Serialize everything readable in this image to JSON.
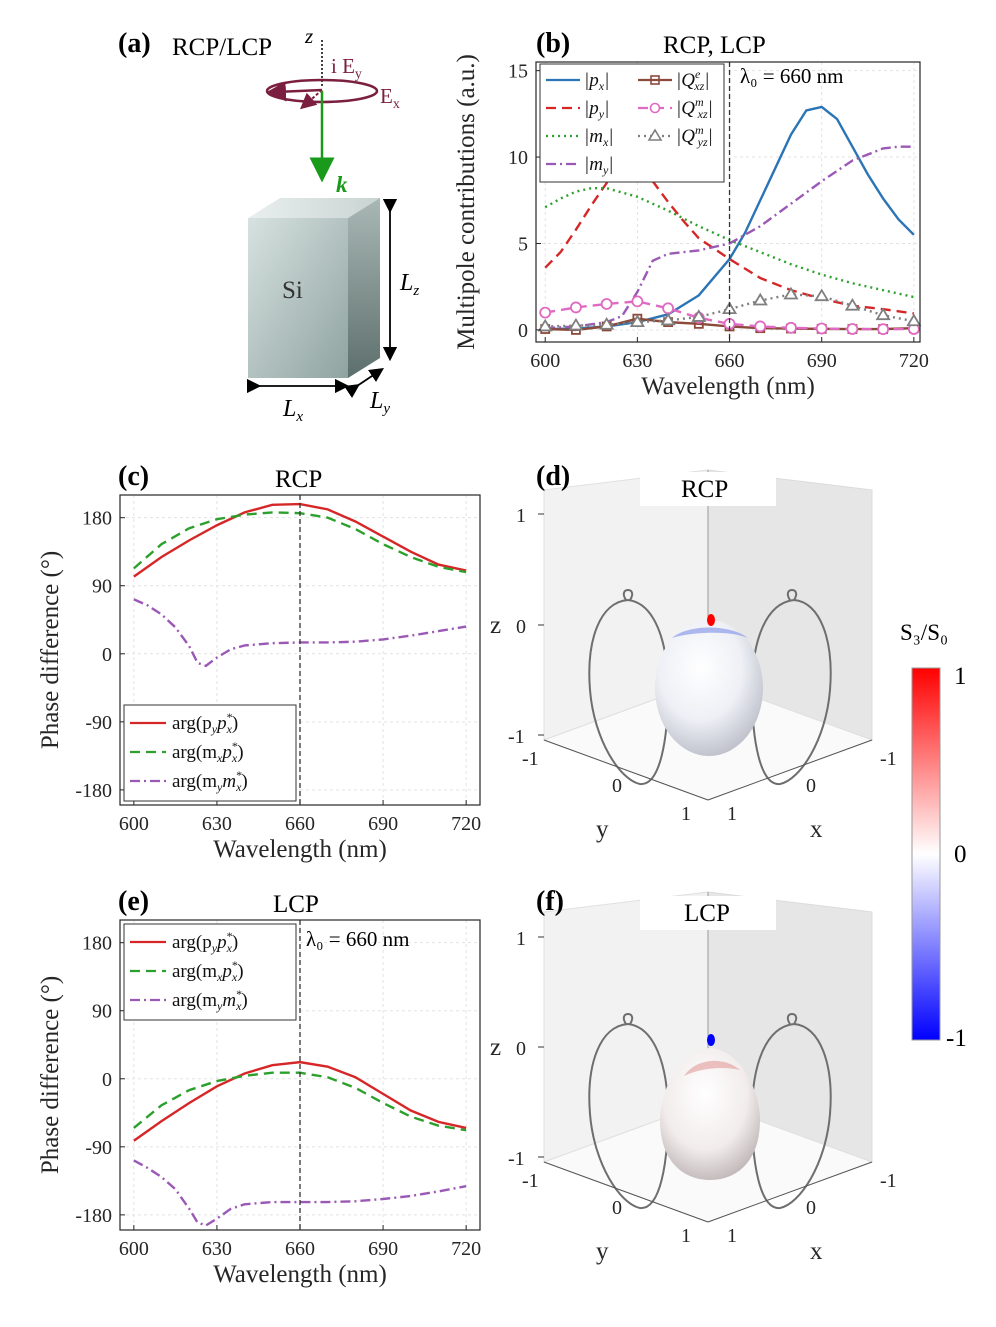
{
  "panels": {
    "a": {
      "label": "(a)",
      "title": "RCP/LCP",
      "axis_z": "z",
      "ey_label": "i E",
      "ey_sub": "y",
      "ex_label": "E",
      "ex_sub": "x",
      "k_label": "k",
      "block_label": "Si",
      "lz": "L",
      "lz_sub": "z",
      "lx": "L",
      "lx_sub": "x",
      "ly": "L",
      "ly_sub": "y"
    },
    "b": {
      "label": "(b)",
      "title": "RCP, LCP",
      "annotation": "λ₀ = 660 nm"
    },
    "c": {
      "label": "(c)",
      "title": "RCP"
    },
    "d": {
      "label": "(d)",
      "title": "RCP"
    },
    "e": {
      "label": "(e)",
      "title": "LCP",
      "annotation": "λ₀ = 660 nm"
    },
    "f": {
      "label": "(f)",
      "title": "LCP"
    }
  },
  "colorbar": {
    "label": "S₃/S₀",
    "ticks": [
      "1",
      "0",
      "-1"
    ],
    "colors": {
      "top": "#ff0000",
      "mid": "#ffffff",
      "bottom": "#0000ff"
    }
  },
  "sphere_axes": {
    "z_label": "z",
    "x_label": "x",
    "y_label": "y",
    "z_ticks": [
      "1",
      "0",
      "-1"
    ],
    "y_ticks": [
      "-1",
      "0",
      "1"
    ],
    "x_ticks": [
      "-1",
      "0",
      "1"
    ]
  },
  "colors": {
    "px": "#2b74b5",
    "py": "#d62728",
    "mx": "#2ca02c",
    "my": "#9b59b6",
    "Qe": "#8b4a3a",
    "Qm": "#e06ac2",
    "Qmyz": "#7f7f7f",
    "arg1": "#d62728",
    "arg2": "#2ca02c",
    "arg3": "#9b59b6",
    "green_k": "#1a9a1a",
    "pol": "#7a1f3f"
  },
  "chart_data": [
    {
      "id": "b",
      "type": "line",
      "title": "RCP, LCP",
      "xlabel": "Wavelength (nm)",
      "ylabel": "Multipole contributions (a.u.)",
      "xlim": [
        597,
        722
      ],
      "ylim": [
        -0.7,
        15.5
      ],
      "xticks": [
        600,
        630,
        660,
        690,
        720
      ],
      "yticks": [
        0,
        5,
        10,
        15
      ],
      "vline": 660,
      "legend": "top-left, two columns",
      "series": [
        {
          "name": "|px|",
          "label": "|p",
          "sub": "x",
          "color": "#2b74b5",
          "dash": "",
          "marker": "",
          "x": [
            600,
            610,
            620,
            630,
            640,
            650,
            660,
            665,
            670,
            675,
            680,
            685,
            690,
            695,
            700,
            705,
            710,
            715,
            720
          ],
          "y": [
            0.05,
            0.08,
            0.2,
            0.45,
            0.9,
            2.0,
            4.1,
            5.6,
            7.5,
            9.4,
            11.3,
            12.7,
            12.9,
            12.2,
            10.6,
            9.0,
            7.6,
            6.4,
            5.5
          ]
        },
        {
          "name": "|py|",
          "label": "|p",
          "sub": "y",
          "color": "#d62728",
          "dash": "10,6",
          "marker": "",
          "x": [
            600,
            605,
            610,
            615,
            620,
            625,
            630,
            635,
            640,
            645,
            650,
            660,
            670,
            680,
            690,
            700,
            710,
            720
          ],
          "y": [
            3.6,
            4.5,
            5.8,
            7.2,
            8.5,
            9.3,
            9.3,
            8.6,
            7.4,
            6.3,
            5.3,
            4.1,
            3.0,
            2.3,
            1.8,
            1.4,
            1.2,
            0.95
          ]
        },
        {
          "name": "|mx|",
          "label": "|m",
          "sub": "x",
          "color": "#2ca02c",
          "dash": "2,4",
          "marker": "",
          "x": [
            600,
            605,
            610,
            615,
            620,
            630,
            640,
            650,
            660,
            670,
            680,
            690,
            700,
            710,
            720
          ],
          "y": [
            7.1,
            7.6,
            8.0,
            8.2,
            8.2,
            7.7,
            6.9,
            6.0,
            5.2,
            4.5,
            3.8,
            3.2,
            2.7,
            2.3,
            1.9
          ]
        },
        {
          "name": "|my|",
          "label": "|m",
          "sub": "y",
          "color": "#9b59b6",
          "dash": "10,4,2,4",
          "marker": "",
          "x": [
            600,
            610,
            620,
            625,
            630,
            635,
            640,
            645,
            650,
            660,
            670,
            680,
            690,
            700,
            710,
            715,
            720
          ],
          "y": [
            0.1,
            0.2,
            0.45,
            0.8,
            2.2,
            4.0,
            4.4,
            4.5,
            4.6,
            5.0,
            6.0,
            7.3,
            8.6,
            9.8,
            10.5,
            10.6,
            10.6
          ]
        },
        {
          "name": "|Qe_xz|",
          "label": "|Q",
          "sub": "xz",
          "sup": "e",
          "color": "#8b4a3a",
          "dash": "",
          "marker": "square",
          "x": [
            600,
            610,
            620,
            630,
            640,
            650,
            660,
            670,
            680,
            690,
            700,
            710,
            720
          ],
          "y": [
            0.05,
            0.0,
            0.2,
            0.65,
            0.45,
            0.35,
            0.2,
            0.1,
            0.08,
            0.06,
            0.05,
            0.05,
            0.1
          ]
        },
        {
          "name": "|Qm_xz|",
          "label": "|Q",
          "sub": "xz",
          "sup": "m",
          "color": "#e06ac2",
          "dash": "10,6",
          "marker": "circle",
          "x": [
            600,
            610,
            620,
            630,
            640,
            650,
            660,
            670,
            680,
            690,
            700,
            710,
            720
          ],
          "y": [
            1.0,
            1.3,
            1.5,
            1.65,
            1.25,
            0.7,
            0.35,
            0.2,
            0.12,
            0.08,
            0.05,
            0.04,
            0.05
          ]
        },
        {
          "name": "|Qm_yz|",
          "label": "|Q",
          "sub": "yz",
          "sup": "m",
          "color": "#7f7f7f",
          "dash": "2,4",
          "marker": "triangle",
          "x": [
            600,
            610,
            620,
            630,
            640,
            650,
            660,
            670,
            680,
            690,
            700,
            710,
            720
          ],
          "y": [
            0.2,
            0.25,
            0.3,
            0.45,
            0.55,
            0.75,
            1.2,
            1.7,
            2.05,
            1.95,
            1.4,
            0.85,
            0.5
          ]
        }
      ]
    },
    {
      "id": "c",
      "type": "line",
      "title": "RCP",
      "xlabel": "Wavelength (nm)",
      "ylabel": "Phase difference (°)",
      "xlim": [
        595,
        725
      ],
      "ylim": [
        -200,
        210
      ],
      "xticks": [
        600,
        630,
        660,
        690,
        720
      ],
      "yticks": [
        180,
        90,
        0,
        -90,
        -180
      ],
      "vline": 660,
      "legend": "bottom-left",
      "series": [
        {
          "name": "arg(py px*)",
          "label": "arg(p",
          "a": "y",
          "b": "p",
          "c": "x",
          "color": "#d62728",
          "dash": "",
          "x": [
            600,
            610,
            620,
            630,
            640,
            650,
            660,
            670,
            680,
            690,
            700,
            710,
            720
          ],
          "y": [
            102,
            128,
            150,
            170,
            187,
            197,
            198,
            191,
            175,
            155,
            135,
            118,
            110
          ]
        },
        {
          "name": "arg(mx px*)",
          "label": "arg(m",
          "a": "x",
          "b": "p",
          "c": "x",
          "color": "#2ca02c",
          "dash": "10,6",
          "x": [
            600,
            610,
            620,
            630,
            640,
            650,
            660,
            670,
            680,
            690,
            700,
            710,
            720
          ],
          "y": [
            113,
            145,
            166,
            178,
            184,
            187,
            186,
            180,
            165,
            145,
            128,
            115,
            108
          ]
        },
        {
          "name": "arg(my mx*)",
          "label": "arg(m",
          "a": "y",
          "b": "m",
          "c": "x",
          "color": "#9b59b6",
          "dash": "10,4,2,4",
          "x": [
            600,
            605,
            610,
            615,
            620,
            623,
            626,
            630,
            635,
            640,
            650,
            660,
            670,
            680,
            690,
            700,
            710,
            720
          ],
          "y": [
            72,
            64,
            52,
            35,
            10,
            -12,
            -16,
            -5,
            6,
            11,
            14,
            15,
            15,
            16,
            19,
            24,
            30,
            36
          ]
        }
      ]
    },
    {
      "id": "e",
      "type": "line",
      "title": "LCP",
      "xlabel": "Wavelength (nm)",
      "ylabel": "Phase difference (°)",
      "xlim": [
        595,
        725
      ],
      "ylim": [
        -200,
        210
      ],
      "xticks": [
        600,
        630,
        660,
        690,
        720
      ],
      "yticks": [
        180,
        90,
        0,
        -90,
        -180
      ],
      "vline": 660,
      "legend": "top-left",
      "series": [
        {
          "name": "arg(py px*)",
          "label": "arg(p",
          "a": "y",
          "b": "p",
          "c": "x",
          "color": "#d62728",
          "dash": "",
          "x": [
            600,
            610,
            620,
            630,
            640,
            650,
            660,
            670,
            680,
            690,
            700,
            710,
            720
          ],
          "y": [
            -82,
            -56,
            -32,
            -10,
            7,
            18,
            22,
            16,
            2,
            -20,
            -42,
            -57,
            -65
          ]
        },
        {
          "name": "arg(mx px*)",
          "label": "arg(m",
          "a": "x",
          "b": "p",
          "c": "x",
          "color": "#2ca02c",
          "dash": "10,6",
          "x": [
            600,
            610,
            620,
            630,
            640,
            650,
            660,
            670,
            680,
            690,
            700,
            710,
            720
          ],
          "y": [
            -65,
            -35,
            -15,
            -3,
            4,
            8,
            8,
            2,
            -12,
            -32,
            -50,
            -62,
            -68
          ]
        },
        {
          "name": "arg(my mx*)",
          "label": "arg(m",
          "a": "y",
          "b": "m",
          "c": "x",
          "color": "#9b59b6",
          "dash": "10,4,2,4",
          "x": [
            600,
            605,
            610,
            615,
            620,
            623,
            626,
            630,
            635,
            640,
            650,
            660,
            670,
            680,
            690,
            700,
            710,
            720
          ],
          "y": [
            -108,
            -118,
            -130,
            -146,
            -172,
            -190,
            -194,
            -185,
            -172,
            -166,
            -163,
            -163,
            -163,
            -162,
            -159,
            -155,
            -149,
            -142
          ]
        }
      ]
    }
  ]
}
